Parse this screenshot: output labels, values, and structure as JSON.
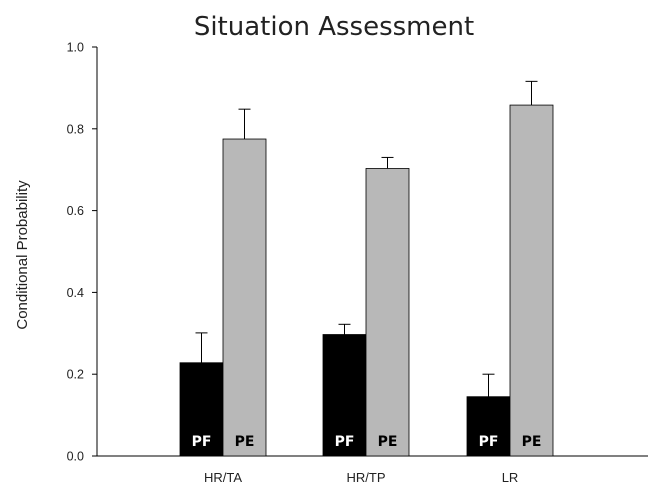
{
  "chart_data": {
    "type": "bar",
    "title": "Situation Assessment",
    "xlabel": "",
    "ylabel": "Conditional Probability",
    "ylim": [
      0,
      1.0
    ],
    "yticks": [
      "0.0",
      "0.2",
      "0.4",
      "0.6",
      "0.8",
      "1.0"
    ],
    "categories": [
      "HR/TA",
      "HR/TP",
      "LR"
    ],
    "series": [
      {
        "name": "PF",
        "color": "#000000",
        "text_color": "#ffffff",
        "values": [
          0.228,
          0.297,
          0.145
        ],
        "errors": [
          0.073,
          0.025,
          0.055
        ]
      },
      {
        "name": "PE",
        "color": "#b8b8b8",
        "text_color": "#000000",
        "values": [
          0.775,
          0.703,
          0.858
        ],
        "errors": [
          0.073,
          0.027,
          0.058
        ]
      }
    ],
    "grid": false,
    "legend": "none"
  }
}
